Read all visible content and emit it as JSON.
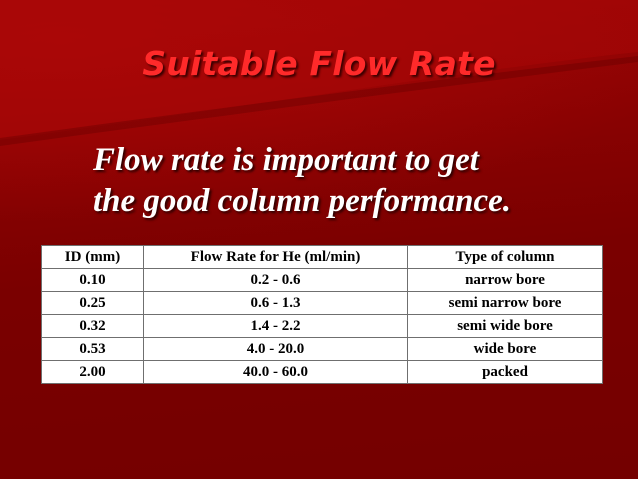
{
  "slide": {
    "title": "Suitable Flow Rate",
    "subtitle_lines": [
      "Flow rate is important to get",
      "the good column performance."
    ]
  },
  "table": {
    "headers": [
      "ID (mm)",
      "Flow Rate for He (ml/min)",
      "Type of column"
    ],
    "rows": [
      [
        "0.10",
        "0.2 - 0.6",
        "narrow bore"
      ],
      [
        "0.25",
        "0.6 - 1.3",
        "semi narrow bore"
      ],
      [
        "0.32",
        "1.4 - 2.2",
        "semi wide bore"
      ],
      [
        "0.53",
        "4.0 - 20.0",
        "wide bore"
      ],
      [
        "2.00",
        "40.0 - 60.0",
        "packed"
      ]
    ]
  },
  "colors": {
    "background": "#7a0000",
    "title": "#ff2a2a",
    "subtitle": "#ffffff",
    "table_background": "#ffffff"
  }
}
